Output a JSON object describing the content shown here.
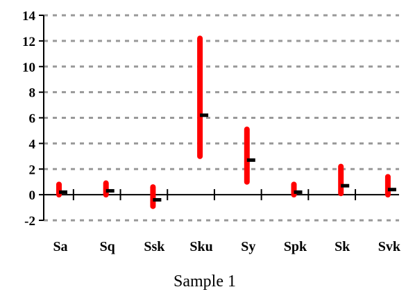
{
  "chart_data": {
    "type": "range",
    "title": "",
    "xlabel": "Sample 1",
    "ylabel": "",
    "ylim": [
      -2,
      14
    ],
    "yticks": [
      -2,
      0,
      2,
      4,
      6,
      8,
      10,
      12,
      14
    ],
    "ytick_labels": [
      "-2",
      "0",
      "2",
      "4",
      "6",
      "8",
      "10",
      "12",
      "14"
    ],
    "grid": true,
    "categories": [
      "Sa",
      "Sq",
      "Ssk",
      "Sku",
      "Sy",
      "Spk",
      "Sk",
      "Svk"
    ],
    "ranges": [
      {
        "low": 0.0,
        "high": 0.8,
        "marker": 0.2
      },
      {
        "low": 0.0,
        "high": 0.9,
        "marker": 0.3
      },
      {
        "low": -0.9,
        "high": 0.6,
        "marker": -0.4
      },
      {
        "low": 3.0,
        "high": 12.2,
        "marker": 6.2
      },
      {
        "low": 1.0,
        "high": 5.1,
        "marker": 2.7
      },
      {
        "low": 0.0,
        "high": 0.8,
        "marker": 0.2
      },
      {
        "low": 0.1,
        "high": 2.2,
        "marker": 0.7
      },
      {
        "low": 0.0,
        "high": 1.4,
        "marker": 0.4
      }
    ],
    "colors": {
      "range_bar": "#ff0000",
      "marker": "#000000",
      "grid": "#999999",
      "axis": "#000000"
    }
  }
}
